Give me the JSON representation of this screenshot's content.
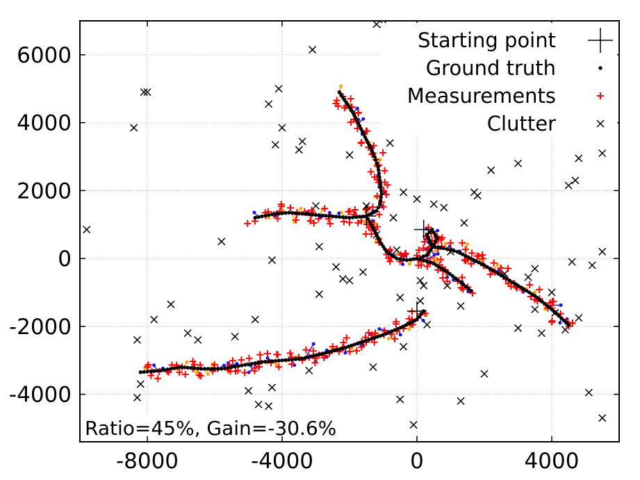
{
  "chart_data": {
    "type": "scatter",
    "title": "",
    "xlabel": "",
    "ylabel": "",
    "xlim": [
      -10000,
      6000
    ],
    "ylim": [
      -5400,
      7000
    ],
    "x_ticks": [
      -8000,
      -4000,
      0,
      4000
    ],
    "x_tick_labels": [
      "-8000",
      "-4000",
      "0",
      "4000"
    ],
    "y_ticks": [
      -4000,
      -2000,
      0,
      2000,
      4000,
      6000
    ],
    "y_tick_labels": [
      "-4000",
      "-2000",
      "0",
      "2000",
      "4000",
      "6000"
    ],
    "grid": true,
    "legend_position": "top-right",
    "annotation": "Ratio=45%, Gain=-30.6%",
    "legend": [
      {
        "name": "Starting point",
        "marker": "big-plus",
        "color": "#000000"
      },
      {
        "name": "Ground truth",
        "marker": "dot",
        "color": "#000000"
      },
      {
        "name": "Measurements",
        "marker": "plus",
        "color": "#ff0000"
      },
      {
        "name": "Clutter",
        "marker": "x",
        "color": "#000000"
      }
    ],
    "starting_points": [
      [
        -1500,
        1250
      ],
      [
        200,
        850
      ],
      [
        0,
        -1550
      ]
    ],
    "ground_truth_tracks": [
      {
        "name": "Track A",
        "points": [
          [
            -2300,
            4900
          ],
          [
            -2100,
            4600
          ],
          [
            -1900,
            4300
          ],
          [
            -1700,
            3900
          ],
          [
            -1500,
            3500
          ],
          [
            -1300,
            3100
          ],
          [
            -1150,
            2700
          ],
          [
            -1100,
            2300
          ],
          [
            -1050,
            1900
          ],
          [
            -1100,
            1600
          ],
          [
            -1200,
            1400
          ],
          [
            -1500,
            1250
          ],
          [
            -2000,
            1200
          ],
          [
            -2600,
            1250
          ],
          [
            -3200,
            1300
          ],
          [
            -3800,
            1350
          ],
          [
            -4300,
            1300
          ],
          [
            -4800,
            1200
          ]
        ]
      },
      {
        "name": "Track B",
        "points": [
          [
            -1500,
            1250
          ],
          [
            -1300,
            900
          ],
          [
            -1100,
            500
          ],
          [
            -900,
            200
          ],
          [
            -600,
            0
          ],
          [
            -300,
            -50
          ],
          [
            0,
            0
          ],
          [
            300,
            100
          ],
          [
            500,
            400
          ],
          [
            600,
            600
          ],
          [
            450,
            850
          ],
          [
            300,
            700
          ],
          [
            450,
            350
          ],
          [
            800,
            300
          ],
          [
            1200,
            200
          ],
          [
            1600,
            0
          ],
          [
            2000,
            -200
          ],
          [
            2500,
            -500
          ],
          [
            3000,
            -800
          ],
          [
            3500,
            -1100
          ],
          [
            4000,
            -1500
          ],
          [
            4500,
            -1950
          ]
        ]
      },
      {
        "name": "Track C",
        "points": [
          [
            0,
            0
          ],
          [
            500,
            -150
          ],
          [
            900,
            -400
          ],
          [
            1300,
            -700
          ],
          [
            1600,
            -950
          ]
        ]
      },
      {
        "name": "Track D",
        "points": [
          [
            200,
            -1550
          ],
          [
            0,
            -1800
          ],
          [
            -400,
            -2000
          ],
          [
            -1000,
            -2250
          ],
          [
            -1600,
            -2450
          ],
          [
            -2200,
            -2650
          ],
          [
            -2800,
            -2800
          ],
          [
            -3400,
            -2950
          ],
          [
            -4000,
            -3000
          ],
          [
            -4600,
            -3050
          ],
          [
            -5200,
            -3150
          ],
          [
            -5800,
            -3250
          ],
          [
            -6400,
            -3250
          ],
          [
            -7000,
            -3200
          ],
          [
            -7600,
            -3300
          ],
          [
            -8200,
            -3350
          ]
        ]
      }
    ],
    "clutter": [
      [
        -9800,
        850
      ],
      [
        -8400,
        3850
      ],
      [
        -8100,
        4900
      ],
      [
        -8000,
        4900
      ],
      [
        -8300,
        -2400
      ],
      [
        -8300,
        -4100
      ],
      [
        -8200,
        -3700
      ],
      [
        -7800,
        -1800
      ],
      [
        -7300,
        -1350
      ],
      [
        -6800,
        -2200
      ],
      [
        -6500,
        -2400
      ],
      [
        -5800,
        500
      ],
      [
        -5400,
        -2300
      ],
      [
        -5000,
        -3900
      ],
      [
        -4800,
        -1800
      ],
      [
        -4700,
        -4300
      ],
      [
        -4400,
        4550
      ],
      [
        -4400,
        -4350
      ],
      [
        -4300,
        -3800
      ],
      [
        -4300,
        -50
      ],
      [
        -4200,
        3350
      ],
      [
        -4100,
        5000
      ],
      [
        -4000,
        3850
      ],
      [
        -3500,
        3200
      ],
      [
        -3400,
        3450
      ],
      [
        -3200,
        -3300
      ],
      [
        -3100,
        6150
      ],
      [
        -3000,
        1550
      ],
      [
        -2900,
        350
      ],
      [
        -2900,
        -1050
      ],
      [
        -2400,
        -250
      ],
      [
        -2200,
        -600
      ],
      [
        -2000,
        -650
      ],
      [
        -2000,
        3050
      ],
      [
        -1600,
        -400
      ],
      [
        -1500,
        1550
      ],
      [
        -1200,
        700
      ],
      [
        -1300,
        -3200
      ],
      [
        -1200,
        6900
      ],
      [
        -1000,
        6900
      ],
      [
        -900,
        3800
      ],
      [
        -800,
        3400
      ],
      [
        -700,
        1200
      ],
      [
        -600,
        250
      ],
      [
        -500,
        -1150
      ],
      [
        -400,
        -2600
      ],
      [
        -500,
        -4150
      ],
      [
        -400,
        1950
      ],
      [
        -100,
        -4900
      ],
      [
        0,
        1750
      ],
      [
        100,
        -650
      ],
      [
        100,
        -1250
      ],
      [
        200,
        -800
      ],
      [
        300,
        -1950
      ],
      [
        500,
        1600
      ],
      [
        800,
        1500
      ],
      [
        900,
        -800
      ],
      [
        1000,
        200
      ],
      [
        1300,
        -1400
      ],
      [
        1400,
        1050
      ],
      [
        1700,
        1950
      ],
      [
        1800,
        1850
      ],
      [
        2200,
        2600
      ],
      [
        2000,
        -3400
      ],
      [
        1300,
        -4200
      ],
      [
        2600,
        -450
      ],
      [
        3000,
        2800
      ],
      [
        3000,
        -2050
      ],
      [
        3300,
        -550
      ],
      [
        3500,
        -1500
      ],
      [
        3500,
        -300
      ],
      [
        3700,
        -2200
      ],
      [
        4000,
        -1000
      ],
      [
        4100,
        -1600
      ],
      [
        4400,
        -2100
      ],
      [
        4800,
        -1750
      ],
      [
        4500,
        2150
      ],
      [
        4600,
        -100
      ],
      [
        4700,
        2300
      ],
      [
        4800,
        2950
      ],
      [
        5100,
        -3950
      ],
      [
        5200,
        -200
      ],
      [
        5500,
        -4700
      ],
      [
        5500,
        3100
      ],
      [
        5500,
        200
      ]
    ],
    "measurement_jitter": 250
  }
}
